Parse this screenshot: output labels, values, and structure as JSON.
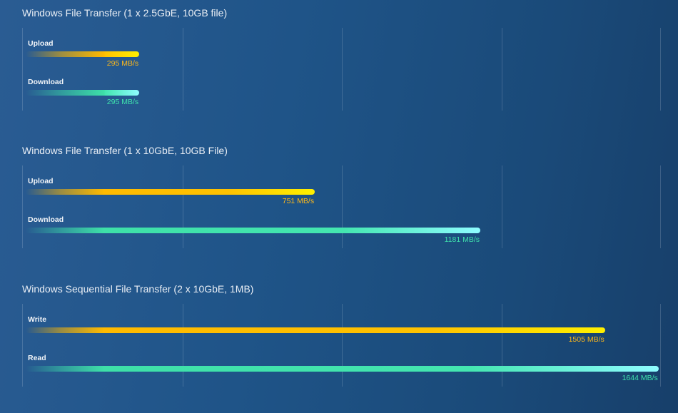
{
  "colors": {
    "background": "#1f5488",
    "upload_bar": "#ffba00",
    "upload_label": "#ffb91a",
    "download_bar": "#44e6b0",
    "download_label": "#3fe3ad",
    "gridline": "#ffffff"
  },
  "chart_data": [
    {
      "type": "bar",
      "orientation": "horizontal",
      "title": "Windows File Transfer (1 x 2.5GbE, 10GB file)",
      "unit": "MB/s",
      "xlim": [
        0,
        1650
      ],
      "grid": true,
      "categories": [
        "Upload",
        "Download"
      ],
      "values": [
        295,
        295
      ],
      "value_labels": [
        "295 MB/s",
        "295 MB/s"
      ]
    },
    {
      "type": "bar",
      "orientation": "horizontal",
      "title": "Windows File Transfer (1 x 10GbE, 10GB File)",
      "unit": "MB/s",
      "xlim": [
        0,
        1650
      ],
      "grid": true,
      "categories": [
        "Upload",
        "Download"
      ],
      "values": [
        751,
        1181
      ],
      "value_labels": [
        "751 MB/s",
        "1181 MB/s"
      ]
    },
    {
      "type": "bar",
      "orientation": "horizontal",
      "title": "Windows Sequential File Transfer (2 x 10GbE, 1MB)",
      "unit": "MB/s",
      "xlim": [
        0,
        1650
      ],
      "grid": true,
      "categories": [
        "Write",
        "Read"
      ],
      "values": [
        1505,
        1644
      ],
      "value_labels": [
        "1505 MB/s",
        "1644 MB/s"
      ]
    }
  ]
}
